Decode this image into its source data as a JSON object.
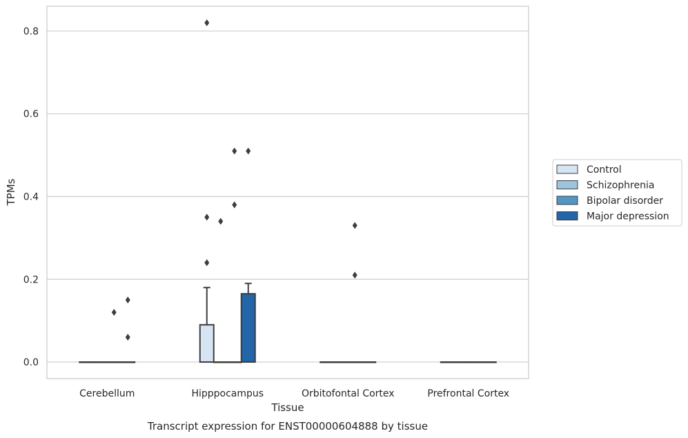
{
  "chart_data": {
    "type": "box",
    "title": "Transcript expression for ENST00000604888 by tissue",
    "xlabel": "Tissue",
    "ylabel": "TPMs",
    "ylim": [
      -0.04,
      0.86
    ],
    "yticks": [
      0.0,
      0.2,
      0.4,
      0.6,
      0.8
    ],
    "ytick_labels": [
      "0.0",
      "0.2",
      "0.4",
      "0.6",
      "0.8"
    ],
    "grid": "horizontal",
    "legend_placement": "right",
    "categories": [
      "Cerebellum",
      "Hipppocampus",
      "Orbitofontal Cortex",
      "Prefrontal Cortex"
    ],
    "series": [
      {
        "name": "Control",
        "color": "#d6e5f3",
        "boxes": [
          {
            "category": "Cerebellum",
            "q1": 0,
            "median": 0,
            "q3": 0,
            "whisker_low": 0,
            "whisker_high": 0,
            "outliers": []
          },
          {
            "category": "Hipppocampus",
            "q1": 0,
            "median": 0,
            "q3": 0.09,
            "whisker_low": 0,
            "whisker_high": 0.18,
            "outliers": [
              0.24,
              0.35,
              0.82
            ]
          },
          {
            "category": "Orbitofontal Cortex",
            "q1": 0,
            "median": 0,
            "q3": 0,
            "whisker_low": 0,
            "whisker_high": 0,
            "outliers": []
          },
          {
            "category": "Prefrontal Cortex",
            "q1": 0,
            "median": 0,
            "q3": 0,
            "whisker_low": 0,
            "whisker_high": 0,
            "outliers": []
          }
        ]
      },
      {
        "name": "Schizophrenia",
        "color": "#9dc4dd",
        "boxes": [
          {
            "category": "Cerebellum",
            "q1": 0,
            "median": 0,
            "q3": 0,
            "whisker_low": 0,
            "whisker_high": 0,
            "outliers": []
          },
          {
            "category": "Hipppocampus",
            "q1": 0,
            "median": 0,
            "q3": 0,
            "whisker_low": 0,
            "whisker_high": 0,
            "outliers": [
              0.34
            ]
          },
          {
            "category": "Orbitofontal Cortex",
            "q1": 0,
            "median": 0,
            "q3": 0,
            "whisker_low": 0,
            "whisker_high": 0,
            "outliers": []
          },
          {
            "category": "Prefrontal Cortex",
            "q1": 0,
            "median": 0,
            "q3": 0,
            "whisker_low": 0,
            "whisker_high": 0,
            "outliers": []
          }
        ]
      },
      {
        "name": "Bipolar disorder",
        "color": "#5196c4",
        "boxes": [
          {
            "category": "Cerebellum",
            "q1": 0,
            "median": 0,
            "q3": 0,
            "whisker_low": 0,
            "whisker_high": 0,
            "outliers": [
              0.12
            ]
          },
          {
            "category": "Hipppocampus",
            "q1": 0,
            "median": 0,
            "q3": 0,
            "whisker_low": 0,
            "whisker_high": 0,
            "outliers": [
              0.38,
              0.51
            ]
          },
          {
            "category": "Orbitofontal Cortex",
            "q1": 0,
            "median": 0,
            "q3": 0,
            "whisker_low": 0,
            "whisker_high": 0,
            "outliers": [
              0.21,
              0.33
            ]
          },
          {
            "category": "Prefrontal Cortex",
            "q1": 0,
            "median": 0,
            "q3": 0,
            "whisker_low": 0,
            "whisker_high": 0,
            "outliers": []
          }
        ]
      },
      {
        "name": "Major depression",
        "color": "#2265a8",
        "boxes": [
          {
            "category": "Cerebellum",
            "q1": 0,
            "median": 0,
            "q3": 0,
            "whisker_low": 0,
            "whisker_high": 0,
            "outliers": [
              0.06,
              0.15
            ]
          },
          {
            "category": "Hipppocampus",
            "q1": 0,
            "median": 0,
            "q3": 0.165,
            "whisker_low": 0,
            "whisker_high": 0.19,
            "outliers": [
              0.51
            ]
          },
          {
            "category": "Orbitofontal Cortex",
            "q1": 0,
            "median": 0,
            "q3": 0,
            "whisker_low": 0,
            "whisker_high": 0,
            "outliers": []
          },
          {
            "category": "Prefrontal Cortex",
            "q1": 0,
            "median": 0,
            "q3": 0,
            "whisker_low": 0,
            "whisker_high": 0,
            "outliers": []
          }
        ]
      }
    ]
  }
}
